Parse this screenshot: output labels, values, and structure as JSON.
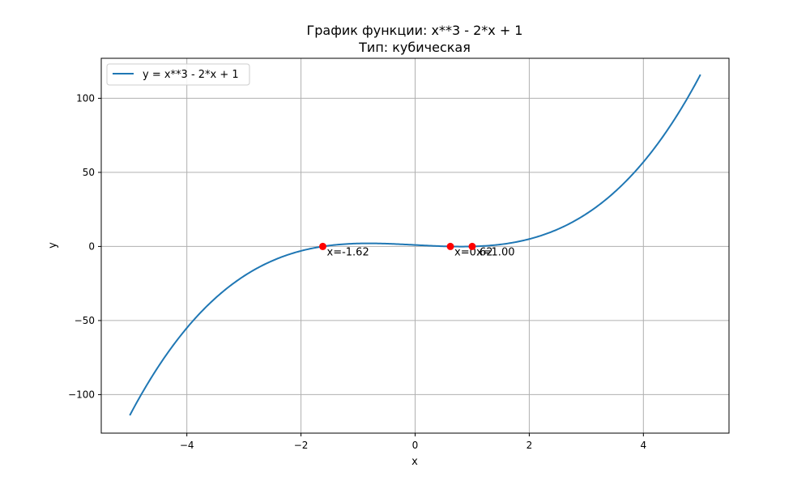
{
  "chart_data": {
    "type": "line",
    "title_line1": "График функции: x**3 - 2*x + 1",
    "title_line2": "Тип: кубическая",
    "xlabel": "x",
    "ylabel": "y",
    "xlim": [
      -5.5,
      5.5
    ],
    "ylim": [
      -126,
      127
    ],
    "x_ticks": [
      -4,
      -2,
      0,
      2,
      4
    ],
    "x_tick_labels": [
      "−4",
      "−2",
      "0",
      "2",
      "4"
    ],
    "y_ticks": [
      -100,
      -50,
      0,
      50,
      100
    ],
    "y_tick_labels": [
      "−100",
      "−50",
      "0",
      "50",
      "100"
    ],
    "grid": true,
    "legend_position": "upper-left",
    "series": [
      {
        "name": "y = x**3 - 2*x + 1",
        "color": "#1f77b4",
        "x_range": [
          -5,
          5
        ]
      }
    ],
    "roots": [
      {
        "x": -1.618,
        "y": 0,
        "label": "x=-1.62"
      },
      {
        "x": 0.618,
        "y": 0,
        "label": "x=0.62"
      },
      {
        "x": 1.0,
        "y": 0,
        "label": "x=1.00"
      }
    ],
    "root_color": "#ff0000"
  }
}
